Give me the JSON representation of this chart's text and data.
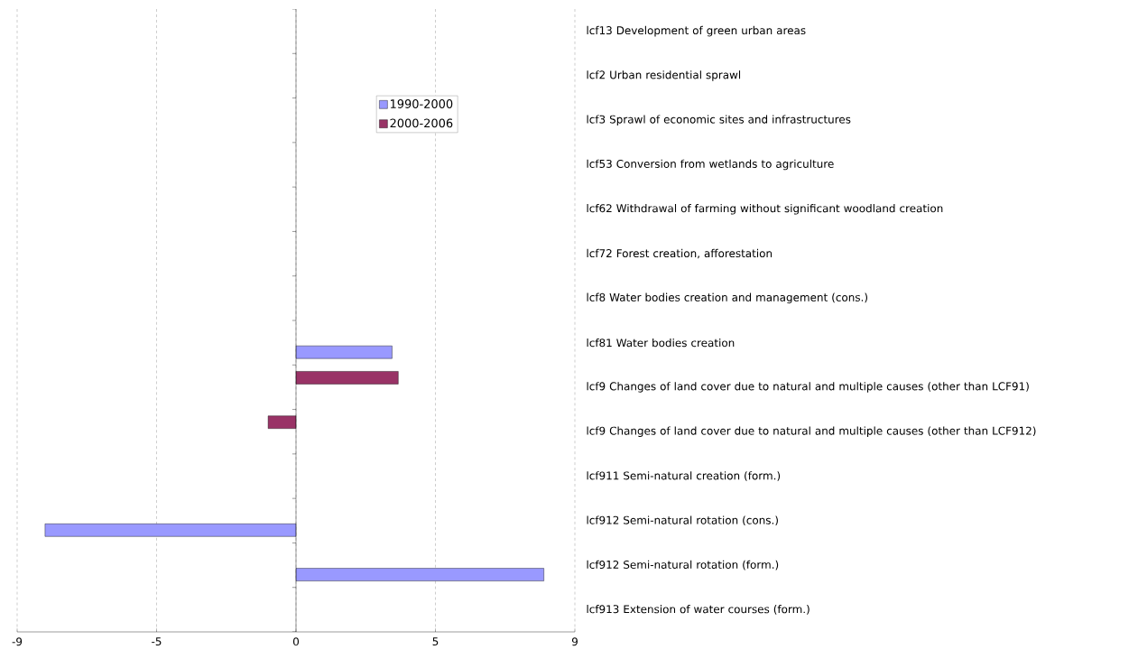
{
  "chart_data": {
    "type": "bar",
    "orientation": "horizontal",
    "categories": [
      "lcf13 Development of green urban areas",
      "lcf2 Urban residential sprawl",
      "lcf3 Sprawl of economic sites and infrastructures",
      "lcf53 Conversion from wetlands to agriculture",
      "lcf62 Withdrawal of farming without significant woodland creation",
      "lcf72 Forest creation, afforestation",
      "lcf8 Water bodies creation and management (cons.)",
      "lcf81 Water bodies creation",
      "lcf9 Changes of land cover due to natural and multiple causes (other than LCF91)",
      "lcf9 Changes of land cover due to natural and multiple causes (other than LCF912)",
      "lcf911 Semi-natural creation (form.)",
      "lcf912 Semi-natural rotation (cons.)",
      "lcf912 Semi-natural rotation (form.)",
      "lcf913 Extension of water courses (form.)"
    ],
    "series": [
      {
        "name": "1990-2000",
        "color": "#9999ff",
        "values": [
          null,
          null,
          null,
          null,
          null,
          null,
          null,
          3.1,
          null,
          null,
          null,
          -8.1,
          8.0,
          null
        ]
      },
      {
        "name": "2000-2006",
        "color": "#993366",
        "values": [
          null,
          null,
          null,
          null,
          null,
          null,
          null,
          null,
          3.3,
          -0.9,
          null,
          null,
          null,
          null
        ]
      }
    ],
    "xlim": [
      -9,
      9
    ],
    "xticks": [
      {
        "value": -9,
        "label": "-9"
      },
      {
        "value": -4.5,
        "label": "-5"
      },
      0,
      {
        "value": 4.5,
        "label": "5"
      },
      {
        "value": 9,
        "label": "9"
      }
    ],
    "grid": "x",
    "legend": "top right"
  }
}
